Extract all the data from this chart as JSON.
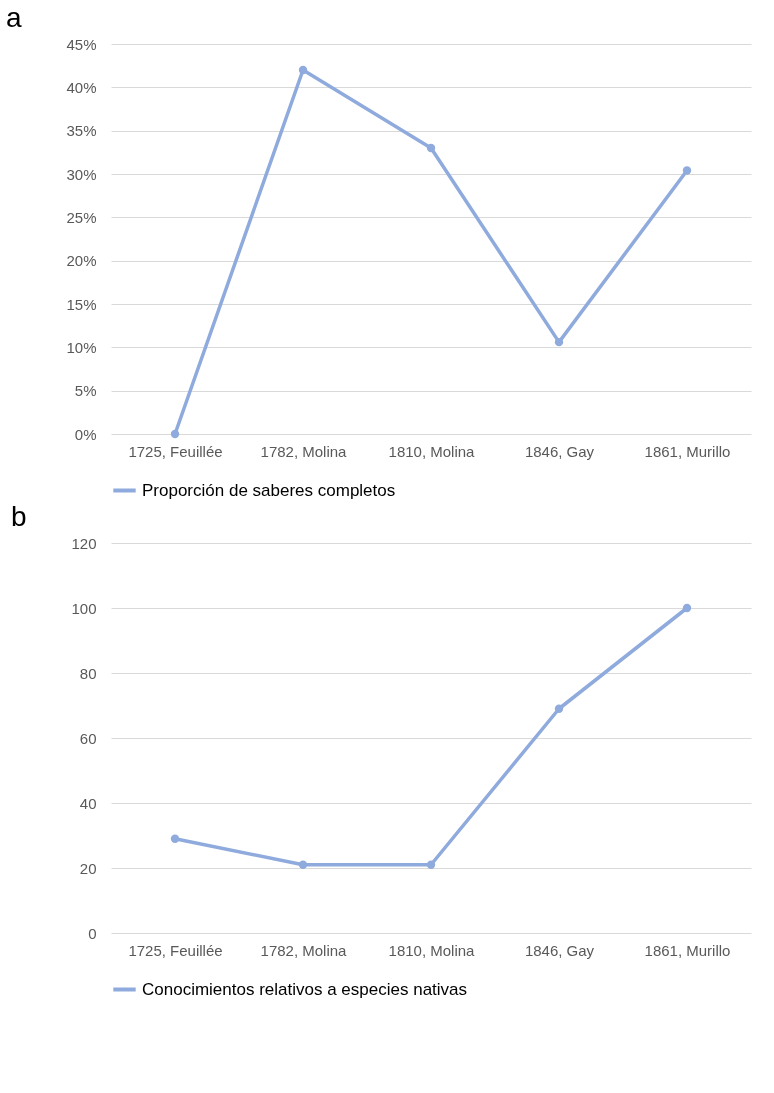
{
  "chart_data": [
    {
      "type": "line",
      "title": "a",
      "categories": [
        "1725, Feuillée",
        "1782, Molina",
        "1810, Molina",
        "1846, Gay",
        "1861, Murillo"
      ],
      "series": [
        {
          "name": "Proporción de saberes completos",
          "color": "#8faadc",
          "values": [
            0,
            42,
            33,
            10.6,
            30.4
          ]
        }
      ],
      "ylim": [
        0,
        45
      ],
      "yticks": [
        {
          "value": 0,
          "label": "0%"
        },
        {
          "value": 5,
          "label": "5%"
        },
        {
          "value": 10,
          "label": "10%"
        },
        {
          "value": 15,
          "label": "15%"
        },
        {
          "value": 20,
          "label": "20%"
        },
        {
          "value": 25,
          "label": "25%"
        },
        {
          "value": 30,
          "label": "30%"
        },
        {
          "value": 35,
          "label": "35%"
        },
        {
          "value": 40,
          "label": "40%"
        },
        {
          "value": 45,
          "label": "45%"
        }
      ],
      "grid": "y",
      "legend": "bottom",
      "marker": "circle",
      "line_style": "solid"
    },
    {
      "type": "line",
      "title": "b",
      "categories": [
        "1725, Feuillée",
        "1782, Molina",
        "1810, Molina",
        "1846, Gay",
        "1861, Murillo"
      ],
      "series": [
        {
          "name": "Conocimientos relativos a especies nativas",
          "color": "#8faadc",
          "values": [
            29,
            21,
            21,
            69,
            100
          ]
        }
      ],
      "ylim": [
        0,
        120
      ],
      "yticks": [
        0,
        20,
        40,
        60,
        80,
        100,
        120
      ],
      "grid": "y",
      "legend": "bottom",
      "marker": "circle",
      "line_style": "solid"
    }
  ]
}
